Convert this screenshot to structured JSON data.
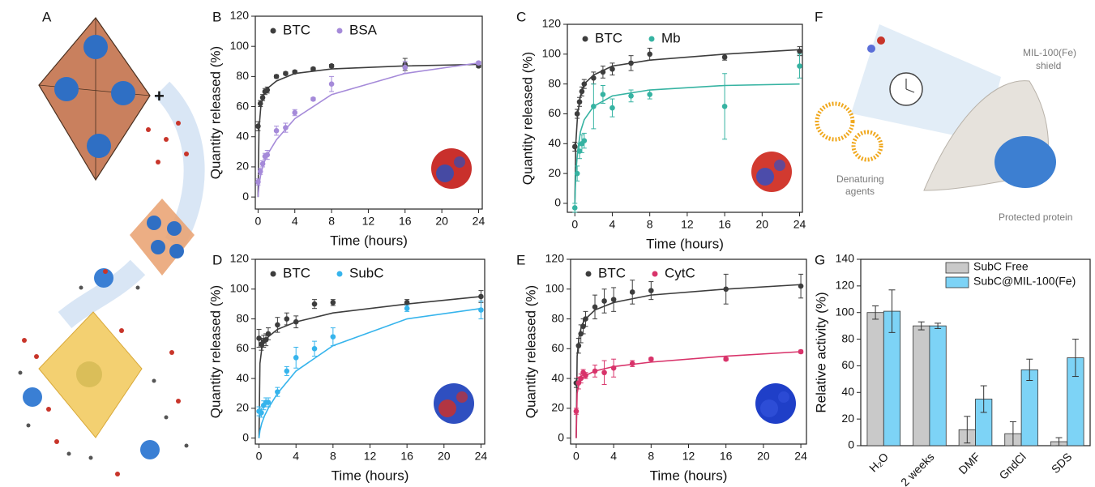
{
  "chart_data": [
    {
      "type": "scatter",
      "panel": "B",
      "xlabel": "Time (hours)",
      "ylabel": "Quantity released (%)",
      "xlim": [
        -0.3,
        24.4
      ],
      "ylim": [
        -8,
        120
      ],
      "xticks": [
        0,
        4,
        8,
        12,
        16,
        20,
        24
      ],
      "yticks": [
        0,
        20,
        40,
        60,
        80,
        100,
        120
      ],
      "x": [
        0,
        0.25,
        0.5,
        0.75,
        1,
        2,
        3,
        4,
        6,
        8,
        16,
        24
      ],
      "fit_x": [
        0,
        0.1,
        0.3,
        0.6,
        1,
        2,
        4,
        8,
        16,
        24
      ],
      "series": [
        {
          "name": "BTC",
          "color": "#3d3d3d",
          "values": [
            47,
            62,
            66,
            70,
            71,
            80,
            82,
            83,
            85,
            87,
            88,
            87
          ],
          "errors": [
            3,
            2,
            2,
            2,
            2,
            1,
            1,
            1,
            1,
            1,
            4,
            1
          ],
          "fit_values": [
            0,
            45,
            60,
            68,
            72,
            77,
            82,
            85,
            87,
            88
          ]
        },
        {
          "name": "BSA",
          "color": "#a58ad9",
          "values": [
            10,
            17,
            22,
            27,
            28,
            44,
            46,
            56,
            65,
            75,
            86,
            89
          ],
          "errors": [
            2,
            2,
            2,
            2,
            3,
            3,
            3,
            2,
            1,
            5,
            4,
            1
          ],
          "fit_values": [
            0,
            8,
            15,
            22,
            28,
            38,
            52,
            68,
            82,
            89
          ]
        }
      ]
    },
    {
      "type": "scatter",
      "panel": "C",
      "xlabel": "Time (hours)",
      "ylabel": "Quantity released (%)",
      "xlim": [
        -0.8,
        24.3
      ],
      "ylim": [
        -6,
        120
      ],
      "xticks": [
        0,
        4,
        8,
        12,
        16,
        20,
        24
      ],
      "yticks": [
        0,
        20,
        40,
        60,
        80,
        100,
        120
      ],
      "x": [
        0,
        0.25,
        0.5,
        0.75,
        1,
        2,
        3,
        4,
        6,
        8,
        16,
        24
      ],
      "fit_x": [
        0,
        0.1,
        0.3,
        0.6,
        1,
        2,
        4,
        8,
        16,
        24
      ],
      "series": [
        {
          "name": "BTC",
          "color": "#3d3d3d",
          "values": [
            38,
            60,
            68,
            75,
            80,
            84,
            88,
            90,
            94,
            100,
            98,
            102
          ],
          "errors": [
            3,
            3,
            3,
            3,
            3,
            4,
            4,
            4,
            5,
            4,
            2,
            3
          ],
          "fit_values": [
            0,
            40,
            60,
            72,
            80,
            86,
            92,
            96,
            100,
            103
          ]
        },
        {
          "name": "Mb",
          "color": "#36b3a2",
          "values": [
            -3,
            20,
            35,
            40,
            42,
            65,
            73,
            64,
            72,
            73,
            65,
            92
          ],
          "errors": [
            3,
            5,
            5,
            6,
            5,
            15,
            6,
            6,
            4,
            3,
            22,
            8
          ],
          "fit_values": [
            0,
            20,
            35,
            48,
            56,
            65,
            72,
            76,
            79,
            80
          ]
        }
      ]
    },
    {
      "type": "scatter",
      "panel": "D",
      "xlabel": "Time (hours)",
      "ylabel": "Quantity released (%)",
      "xlim": [
        -0.4,
        24.4
      ],
      "ylim": [
        -4,
        120
      ],
      "xticks": [
        0,
        4,
        8,
        12,
        16,
        20,
        24
      ],
      "yticks": [
        0,
        20,
        40,
        60,
        80,
        100,
        120
      ],
      "x": [
        0,
        0.25,
        0.5,
        0.75,
        1,
        2,
        3,
        4,
        6,
        8,
        16,
        24
      ],
      "fit_x": [
        0,
        0.1,
        0.3,
        0.6,
        1,
        2,
        4,
        8,
        16,
        24
      ],
      "series": [
        {
          "name": "BTC",
          "color": "#3d3d3d",
          "values": [
            67,
            63,
            65,
            66,
            70,
            76,
            80,
            78,
            90,
            91,
            91,
            95
          ],
          "errors": [
            6,
            4,
            4,
            4,
            4,
            5,
            4,
            4,
            3,
            2,
            2,
            4
          ],
          "fit_values": [
            0,
            50,
            60,
            65,
            68,
            73,
            78,
            84,
            90,
            95
          ]
        },
        {
          "name": "SubC",
          "color": "#36b4ec",
          "values": [
            18,
            17,
            22,
            24,
            24,
            31,
            45,
            54,
            60,
            68,
            87,
            86
          ],
          "errors": [
            3,
            3,
            3,
            3,
            3,
            3,
            3,
            7,
            5,
            6,
            2,
            6
          ],
          "fit_values": [
            0,
            5,
            10,
            15,
            20,
            30,
            45,
            62,
            80,
            87
          ]
        }
      ]
    },
    {
      "type": "scatter",
      "panel": "E",
      "xlabel": "Time (hours)",
      "ylabel": "Quantity released (%)",
      "xlim": [
        -0.6,
        24.6
      ],
      "ylim": [
        -4,
        120
      ],
      "xticks": [
        0,
        4,
        8,
        12,
        16,
        20,
        24
      ],
      "yticks": [
        0,
        20,
        40,
        60,
        80,
        100,
        120
      ],
      "x": [
        0,
        0.25,
        0.5,
        0.75,
        1,
        2,
        3,
        4,
        6,
        8,
        16,
        24
      ],
      "fit_x": [
        0,
        0.1,
        0.3,
        0.6,
        1,
        2,
        4,
        8,
        16,
        24
      ],
      "series": [
        {
          "name": "BTC",
          "color": "#3d3d3d",
          "values": [
            37,
            62,
            70,
            75,
            80,
            88,
            92,
            93,
            98,
            99,
            100,
            102
          ],
          "errors": [
            3,
            5,
            6,
            5,
            5,
            8,
            8,
            8,
            8,
            6,
            10,
            8
          ],
          "fit_values": [
            0,
            55,
            68,
            76,
            80,
            86,
            91,
            96,
            100,
            103
          ]
        },
        {
          "name": "CytC",
          "color": "#d8336a",
          "values": [
            18,
            37,
            40,
            44,
            42,
            45,
            44,
            47,
            50,
            53,
            53,
            58
          ],
          "errors": [
            2,
            4,
            3,
            2,
            2,
            4,
            8,
            6,
            2,
            1,
            1,
            1
          ],
          "fit_values": [
            0,
            30,
            37,
            40,
            42,
            45,
            48,
            51,
            55,
            58
          ]
        }
      ]
    },
    {
      "type": "bar",
      "panel": "G",
      "ylabel": "Relative activity (%)",
      "ylim": [
        0,
        140
      ],
      "yticks": [
        0,
        20,
        40,
        60,
        80,
        100,
        120,
        140
      ],
      "categories": [
        "H₂O",
        "2 weeks",
        "DMF",
        "GndCl",
        "SDS"
      ],
      "series": [
        {
          "name": "SubC Free",
          "color": "#c9c9c9",
          "values": [
            100,
            90,
            12,
            9,
            3
          ],
          "errors": [
            5,
            3,
            10,
            9,
            3
          ]
        },
        {
          "name": "SubC@MIL-100(Fe)",
          "color": "#7dd3f6",
          "values": [
            101,
            90,
            35,
            57,
            66
          ],
          "errors": [
            16,
            2,
            10,
            8,
            14
          ]
        }
      ]
    }
  ],
  "illustrations": {
    "A": {
      "panel": "A"
    },
    "F": {
      "panel": "F",
      "shield_label": [
        "MIL-100(Fe)",
        "shield"
      ],
      "agents_label": [
        "Denaturing",
        "agents"
      ],
      "protein_label": "Protected protein"
    }
  }
}
